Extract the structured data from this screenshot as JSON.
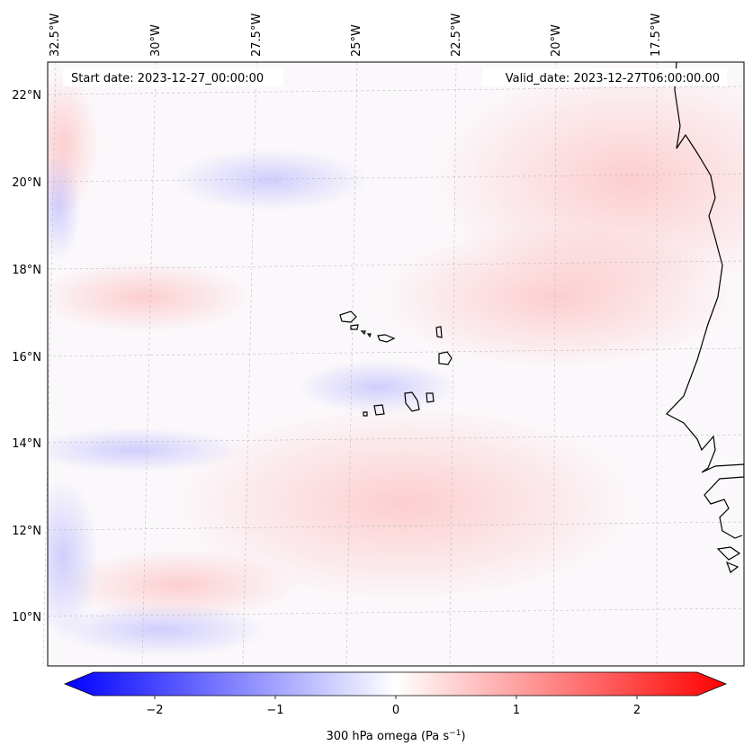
{
  "map": {
    "start_date_text": "Start date: 2023-12-27_00:00:00",
    "valid_date_text": "Valid_date: 2023-12-27T06:00:00.00",
    "lon_labels": [
      "32.5°W",
      "30°W",
      "27.5°W",
      "25°W",
      "22.5°W",
      "20°W",
      "17.5°W"
    ],
    "lat_labels": [
      "22°N",
      "20°N",
      "18°N",
      "16°N",
      "14°N",
      "12°N",
      "10°N"
    ],
    "field": "300 hPa omega",
    "coastline_color": "#000000",
    "gridline_color": "#bbbbbb"
  },
  "colorbar": {
    "label": "300 hPa omega (Pa s",
    "label_exp": "−1",
    "label_close": ")",
    "ticks": [
      "−2",
      "−1",
      "0",
      "1",
      "2"
    ],
    "range": [
      -2.5,
      2.5
    ],
    "colormap": "bwr",
    "low_color": "#0000ff",
    "mid_color": "#ffffff",
    "high_color": "#ff0000"
  }
}
